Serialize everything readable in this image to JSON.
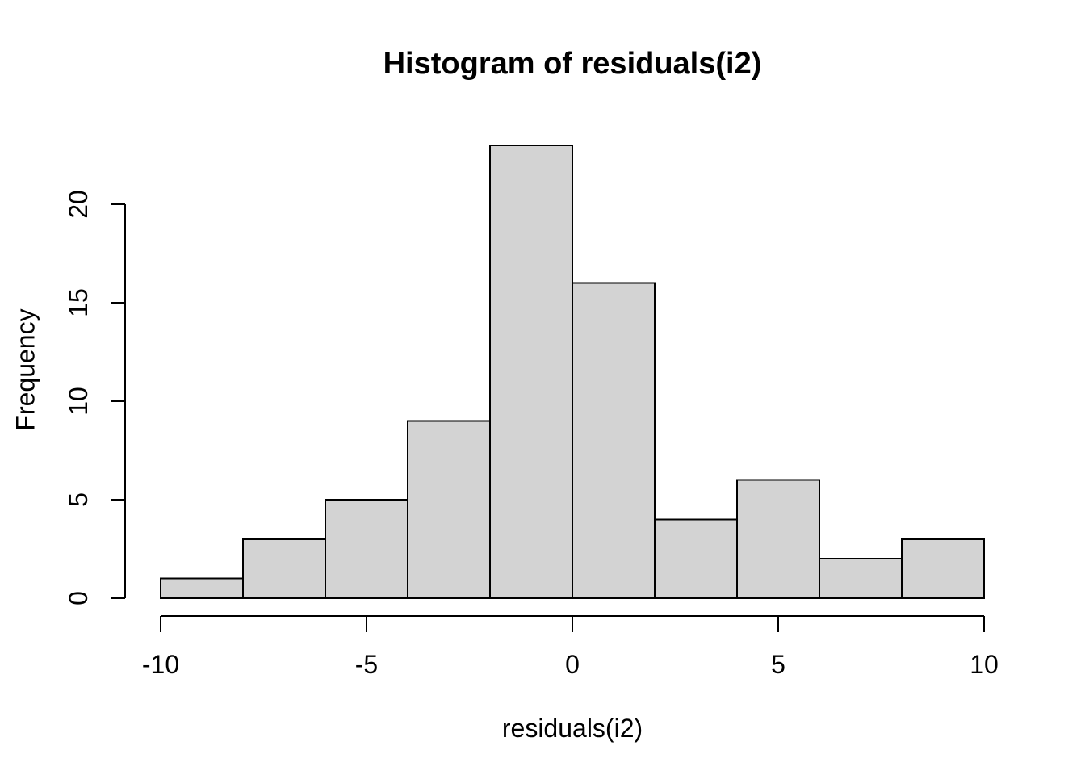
{
  "chart_data": {
    "type": "bar",
    "variant": "histogram",
    "title": "Histogram of residuals(i2)",
    "xlabel": "residuals(i2)",
    "ylabel": "Frequency",
    "bin_edges": [
      -10,
      -8,
      -6,
      -4,
      -2,
      0,
      2,
      4,
      6,
      8,
      10
    ],
    "counts": [
      1,
      3,
      5,
      9,
      23,
      16,
      4,
      6,
      2,
      3
    ],
    "x_ticks": [
      "-10",
      "-5",
      "0",
      "5",
      "10"
    ],
    "x_tick_values": [
      -10,
      -5,
      0,
      5,
      10
    ],
    "y_ticks": [
      "0",
      "5",
      "10",
      "15",
      "20"
    ],
    "y_tick_values": [
      0,
      5,
      10,
      15,
      20
    ],
    "xlim": [
      -10,
      10
    ],
    "ylim": [
      0,
      23
    ],
    "grid": false,
    "legend": "none",
    "bar_fill": "#d3d3d3",
    "bar_stroke": "#000000",
    "axis_color": "#000000",
    "text_color": "#000000",
    "background": "#ffffff"
  }
}
